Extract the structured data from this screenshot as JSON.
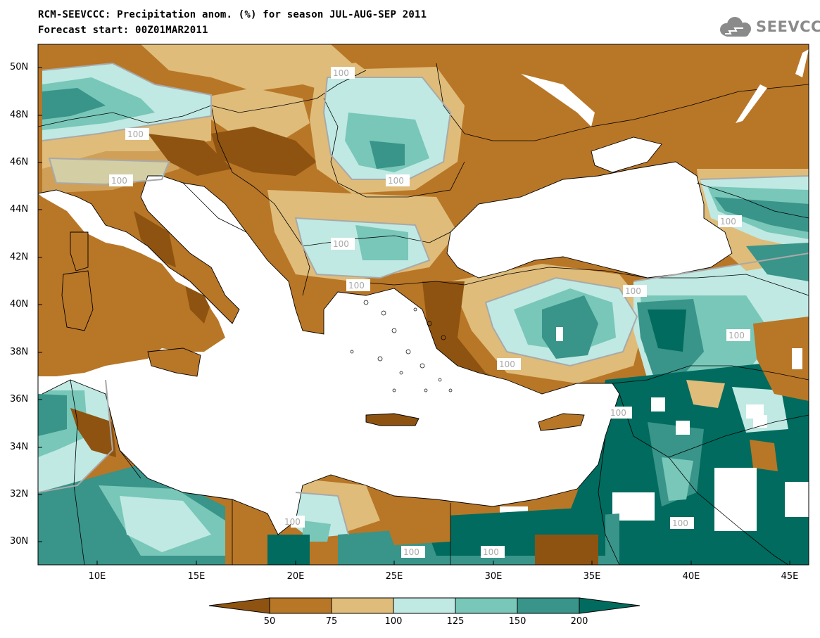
{
  "header": {
    "title": "RCM-SEEVCCC: Precipitation anom. (%) for season JUL-AUG-SEP 2011",
    "subtitle": "Forecast start: 00Z01MAR2011",
    "logo_text": "SEEVCCC"
  },
  "map": {
    "type": "filled-contour",
    "variable": "Precipitation anomaly (%)",
    "lat_labels": [
      "50N",
      "48N",
      "46N",
      "44N",
      "42N",
      "40N",
      "38N",
      "36N",
      "34N",
      "32N",
      "30N"
    ],
    "lon_labels": [
      "10E",
      "15E",
      "20E",
      "25E",
      "30E",
      "35E",
      "40E",
      "45E"
    ],
    "contour_labels": [
      "100",
      "100",
      "100",
      "100",
      "100",
      "100",
      "100",
      "100",
      "100",
      "100",
      "100",
      "100",
      "100",
      "100",
      "100"
    ]
  },
  "colorbar": {
    "levels": [
      "50",
      "75",
      "100",
      "125",
      "150",
      "200"
    ],
    "colors": [
      "#8e5310",
      "#b87627",
      "#dfbc7a",
      "#c0e9e3",
      "#78c7b9",
      "#399489",
      "#006b5e"
    ]
  }
}
